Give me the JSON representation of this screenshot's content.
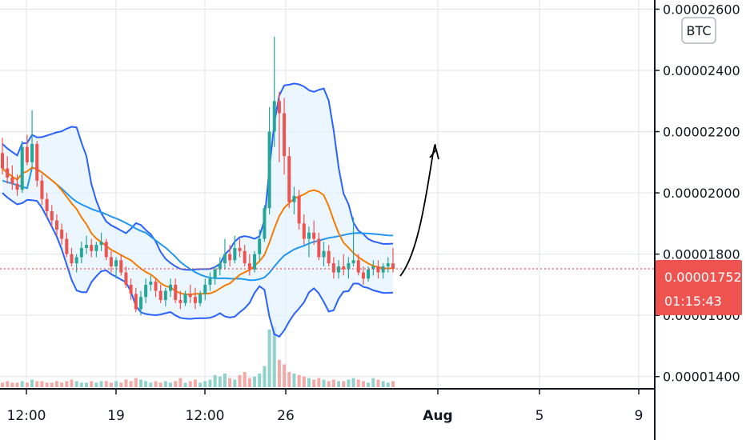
{
  "symbol_badge": "BTC",
  "price_label": {
    "price": "0.00001752",
    "countdown": "01:15:43"
  },
  "colors": {
    "up": "#26a69a",
    "down": "#ef5350",
    "upper_band": "#2962ff",
    "lower_band": "#2962ff",
    "basis": "#f57c00",
    "long_ma": "#2196f3",
    "band_fill": "#e3f2fd",
    "arrow": "#000000",
    "price_line": "#ef5350",
    "grid": "#e0e3eb"
  },
  "chart_data": {
    "type": "candlestick",
    "y_axis_ticks": [
      "0.00001400",
      "0.00001600",
      "0.00001800",
      "0.00002000",
      "0.00002200",
      "0.00002400",
      "0.00002600"
    ],
    "ylim": [
      1.36e-05,
      2.63e-05
    ],
    "x_axis_ticks": [
      "12:00",
      "19",
      "12:00",
      "26",
      "Aug",
      "5",
      "9"
    ],
    "last_price": 1.752e-05,
    "candles_note": "approximate OHLC in units of 1e-8 BTC; ~4h bars",
    "candles": [
      [
        2130,
        2180,
        2060,
        2080
      ],
      [
        2080,
        2120,
        2030,
        2050
      ],
      [
        2050,
        2090,
        2010,
        2030
      ],
      [
        2030,
        2060,
        1990,
        2010
      ],
      [
        2010,
        2170,
        2000,
        2150
      ],
      [
        2150,
        2190,
        2090,
        2100
      ],
      [
        2100,
        2270,
        2080,
        2160
      ],
      [
        2160,
        2170,
        2020,
        2040
      ],
      [
        2040,
        2060,
        1960,
        1980
      ],
      [
        1980,
        2000,
        1920,
        1940
      ],
      [
        1940,
        1960,
        1890,
        1910
      ],
      [
        1910,
        1930,
        1860,
        1880
      ],
      [
        1880,
        1900,
        1830,
        1850
      ],
      [
        1850,
        1870,
        1790,
        1800
      ],
      [
        1800,
        1820,
        1760,
        1770
      ],
      [
        1770,
        1800,
        1740,
        1790
      ],
      [
        1790,
        1840,
        1770,
        1820
      ],
      [
        1820,
        1860,
        1800,
        1830
      ],
      [
        1830,
        1850,
        1790,
        1810
      ],
      [
        1810,
        1840,
        1790,
        1830
      ],
      [
        1830,
        1870,
        1810,
        1840
      ],
      [
        1840,
        1850,
        1780,
        1790
      ],
      [
        1790,
        1810,
        1740,
        1760
      ],
      [
        1760,
        1790,
        1720,
        1780
      ],
      [
        1780,
        1800,
        1730,
        1740
      ],
      [
        1740,
        1760,
        1690,
        1700
      ],
      [
        1700,
        1720,
        1650,
        1670
      ],
      [
        1670,
        1690,
        1610,
        1620
      ],
      [
        1620,
        1680,
        1600,
        1660
      ],
      [
        1660,
        1720,
        1640,
        1700
      ],
      [
        1700,
        1730,
        1680,
        1710
      ],
      [
        1710,
        1720,
        1660,
        1680
      ],
      [
        1680,
        1700,
        1640,
        1650
      ],
      [
        1650,
        1690,
        1630,
        1680
      ],
      [
        1680,
        1720,
        1660,
        1700
      ],
      [
        1700,
        1720,
        1640,
        1650
      ],
      [
        1650,
        1680,
        1620,
        1640
      ],
      [
        1640,
        1680,
        1630,
        1670
      ],
      [
        1670,
        1700,
        1640,
        1660
      ],
      [
        1660,
        1690,
        1620,
        1640
      ],
      [
        1640,
        1680,
        1630,
        1670
      ],
      [
        1670,
        1720,
        1650,
        1700
      ],
      [
        1700,
        1740,
        1680,
        1720
      ],
      [
        1720,
        1760,
        1700,
        1750
      ],
      [
        1750,
        1790,
        1730,
        1770
      ],
      [
        1770,
        1850,
        1750,
        1800
      ],
      [
        1800,
        1830,
        1760,
        1780
      ],
      [
        1780,
        1860,
        1770,
        1820
      ],
      [
        1820,
        1850,
        1790,
        1810
      ],
      [
        1810,
        1830,
        1760,
        1770
      ],
      [
        1770,
        1800,
        1730,
        1750
      ],
      [
        1750,
        1810,
        1740,
        1800
      ],
      [
        1800,
        1880,
        1780,
        1850
      ],
      [
        1850,
        1960,
        1840,
        1950
      ],
      [
        1950,
        2280,
        1930,
        2200
      ],
      [
        2200,
        2510,
        2150,
        2300
      ],
      [
        2300,
        2330,
        2100,
        2260
      ],
      [
        2260,
        2310,
        2060,
        2120
      ],
      [
        2120,
        2150,
        1950,
        1970
      ],
      [
        1970,
        2020,
        1930,
        1990
      ],
      [
        1990,
        2010,
        1880,
        1900
      ],
      [
        1900,
        1930,
        1830,
        1850
      ],
      [
        1850,
        1890,
        1790,
        1870
      ],
      [
        1870,
        1910,
        1830,
        1850
      ],
      [
        1850,
        1870,
        1780,
        1790
      ],
      [
        1790,
        1840,
        1760,
        1810
      ],
      [
        1810,
        1830,
        1760,
        1770
      ],
      [
        1770,
        1790,
        1720,
        1740
      ],
      [
        1740,
        1780,
        1720,
        1760
      ],
      [
        1760,
        1800,
        1730,
        1750
      ],
      [
        1750,
        1790,
        1720,
        1770
      ],
      [
        1770,
        1920,
        1760,
        1780
      ],
      [
        1780,
        1800,
        1730,
        1740
      ],
      [
        1740,
        1760,
        1700,
        1720
      ],
      [
        1720,
        1760,
        1710,
        1750
      ],
      [
        1750,
        1780,
        1730,
        1760
      ],
      [
        1760,
        1780,
        1720,
        1740
      ],
      [
        1740,
        1770,
        1720,
        1760
      ],
      [
        1760,
        1790,
        1740,
        1770
      ],
      [
        1770,
        1820,
        1740,
        1752
      ]
    ],
    "volume_note": "relative volume per candle",
    "volumes": [
      3,
      4,
      3,
      3,
      4,
      3,
      5,
      4,
      4,
      3,
      3,
      4,
      3,
      4,
      5,
      4,
      3,
      3,
      4,
      3,
      4,
      4,
      3,
      4,
      3,
      5,
      4,
      6,
      5,
      4,
      3,
      4,
      3,
      4,
      3,
      4,
      6,
      3,
      4,
      5,
      3,
      4,
      5,
      8,
      7,
      9,
      6,
      5,
      8,
      10,
      6,
      7,
      9,
      14,
      38,
      40,
      18,
      15,
      10,
      9,
      8,
      7,
      6,
      5,
      6,
      5,
      4,
      5,
      4,
      4,
      5,
      6,
      5,
      4,
      3,
      6,
      5,
      4,
      3,
      4
    ]
  }
}
